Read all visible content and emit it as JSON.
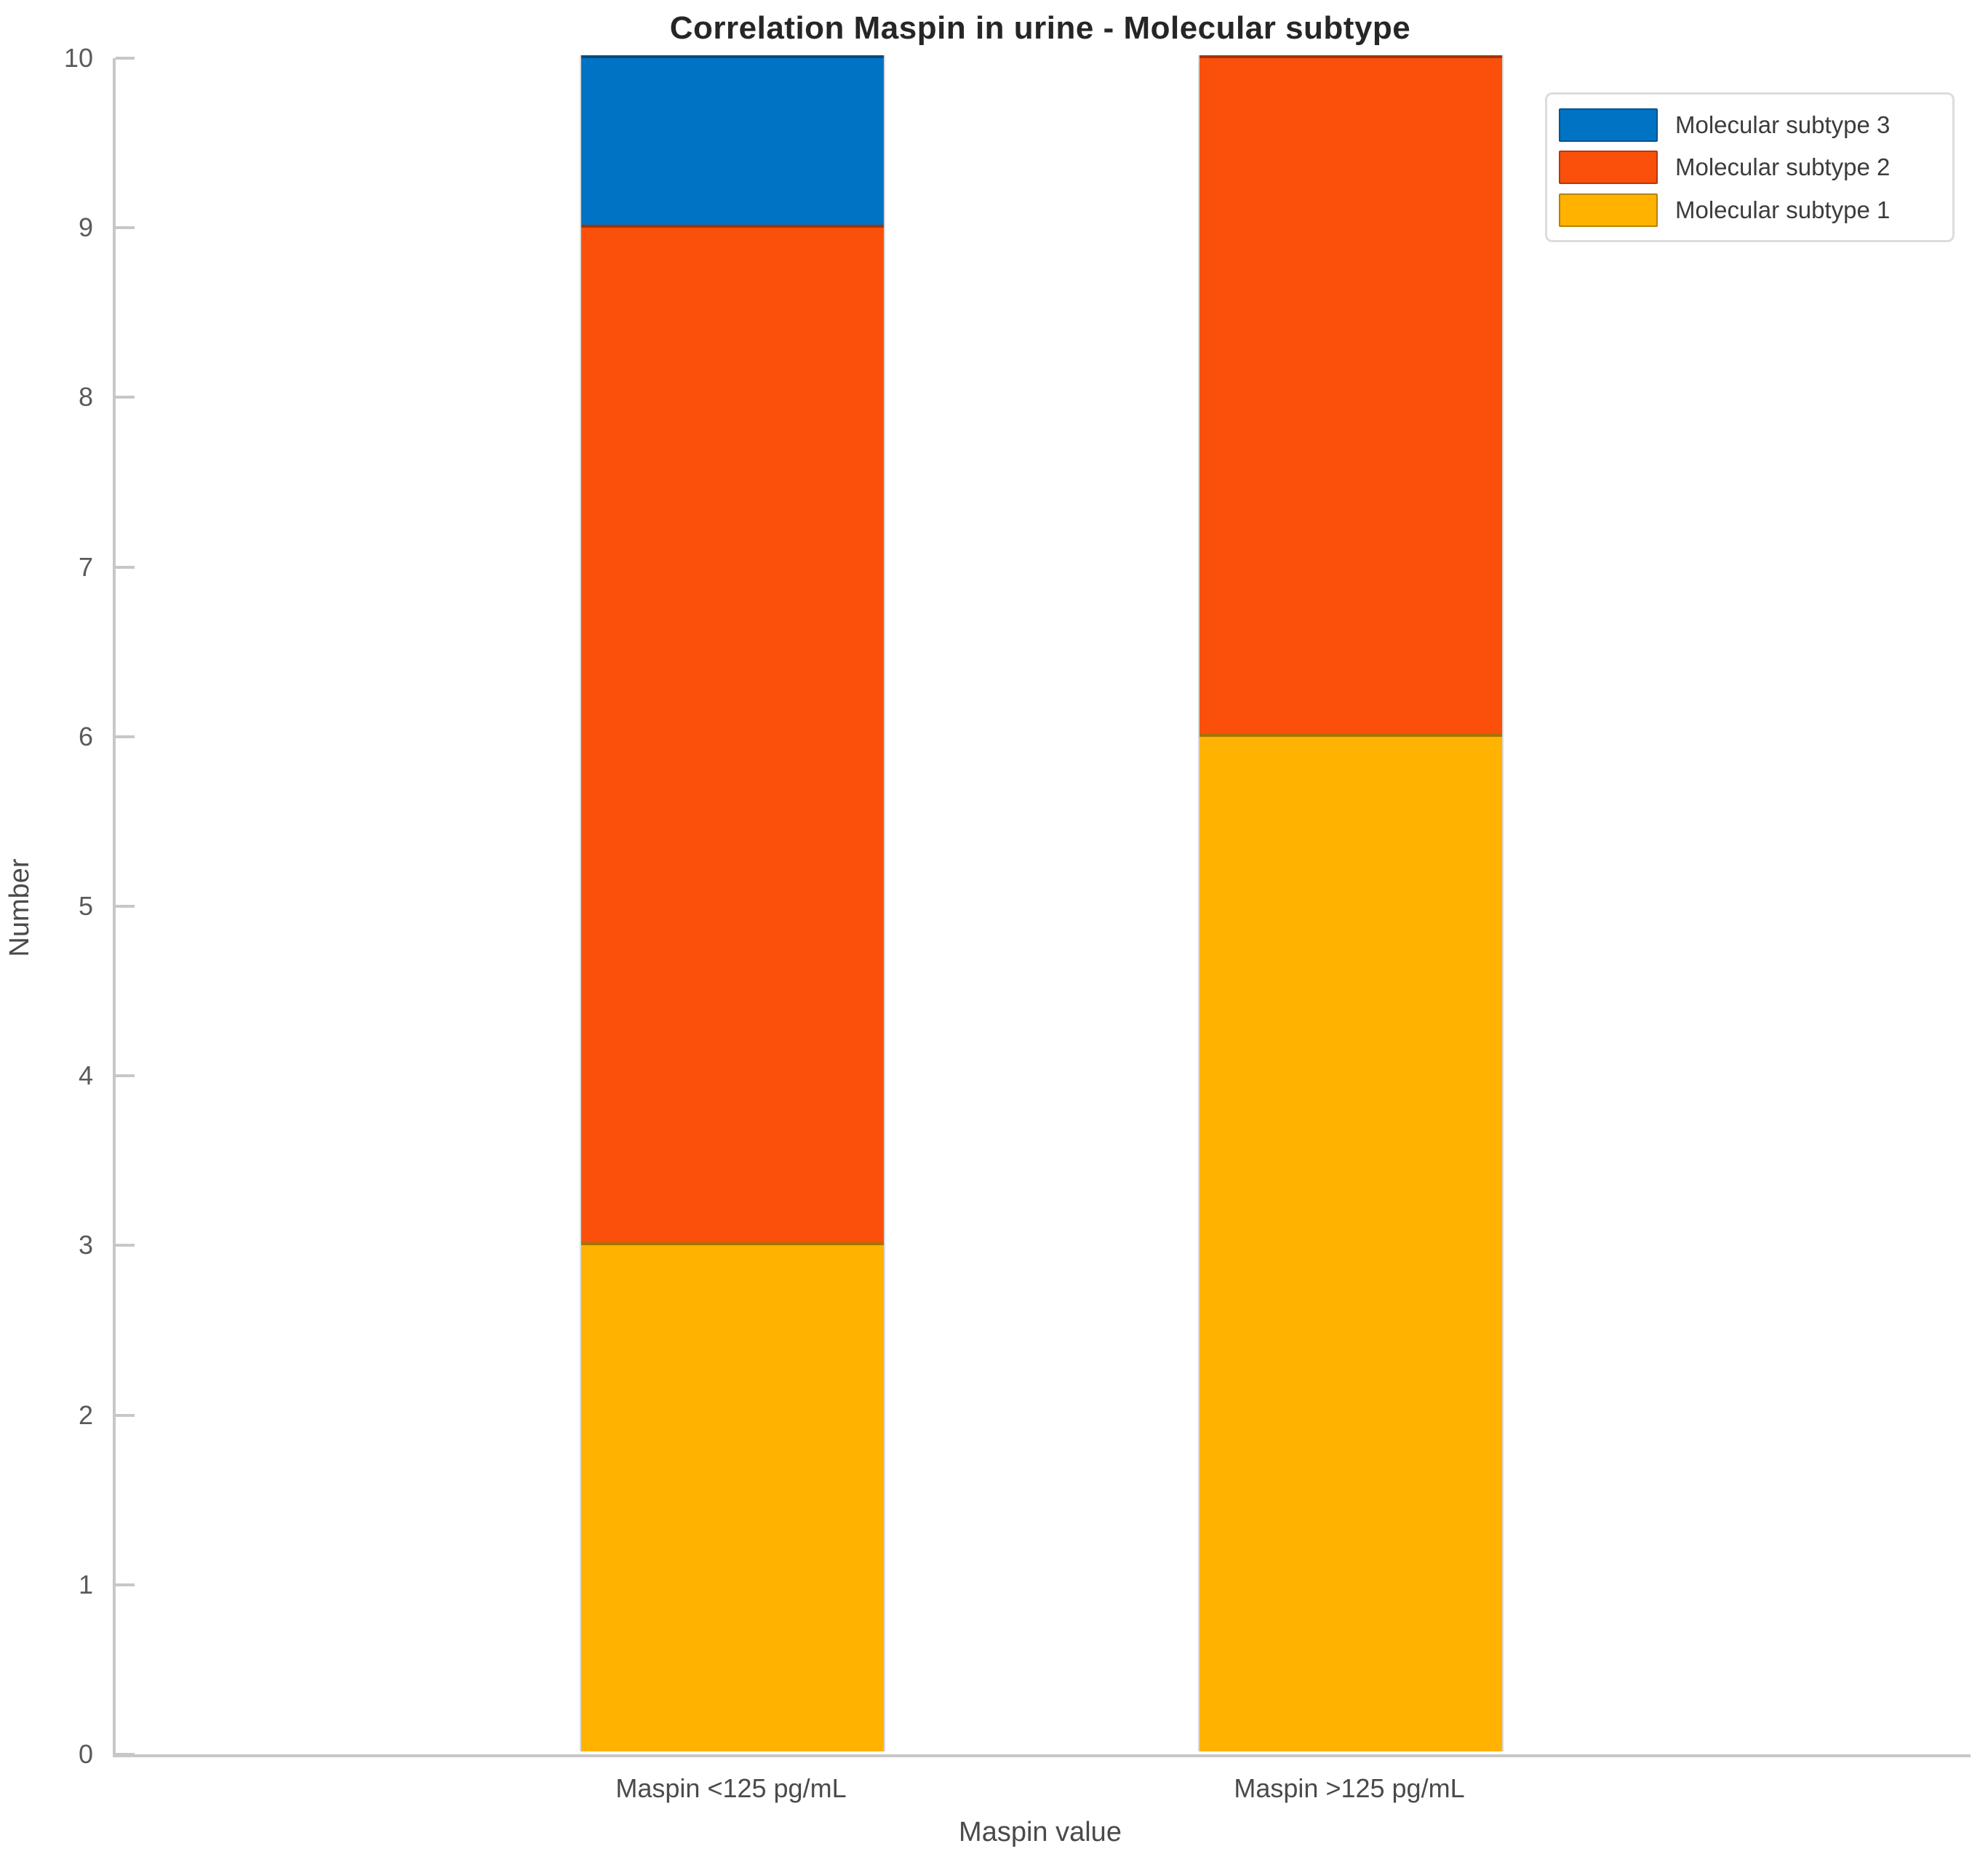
{
  "chart_data": {
    "type": "bar",
    "stacked": true,
    "title": "Correlation Maspin in urine - Molecular subtype",
    "xlabel": "Maspin value",
    "ylabel": "Number",
    "categories": [
      "Maspin <125 pg/mL",
      "Maspin >125 pg/mL"
    ],
    "series": [
      {
        "name": "Molecular subtype 1",
        "color": "#FFB300",
        "values": [
          3,
          6
        ]
      },
      {
        "name": "Molecular subtype 2",
        "color": "#FA500C",
        "values": [
          6,
          4
        ]
      },
      {
        "name": "Molecular subtype 3",
        "color": "#0173C4",
        "values": [
          1,
          0
        ]
      }
    ],
    "totals": [
      10,
      10
    ],
    "ylim": [
      0,
      10
    ],
    "yticks": [
      0,
      1,
      2,
      3,
      4,
      5,
      6,
      7,
      8,
      9,
      10
    ],
    "grid": false,
    "legend": {
      "position": "top-right",
      "order": [
        "Molecular subtype 3",
        "Molecular subtype 2",
        "Molecular subtype 1"
      ]
    }
  },
  "colors": {
    "background": "#ffffff",
    "axis_line": "#c7c7c7",
    "tick_label": "#5a5a5a",
    "title_text": "#262626",
    "series_blue": "#0173C4",
    "series_orange": "#FA500C",
    "series_yellow": "#FFB300",
    "legend_border": "#dcdcdc"
  }
}
